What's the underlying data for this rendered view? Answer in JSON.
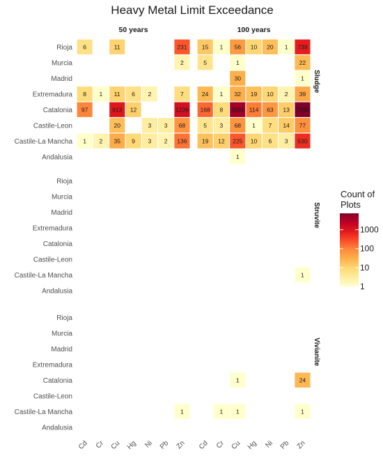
{
  "chart_data": {
    "type": "heatmap",
    "title": "Heavy Metal Limit Exceedance",
    "column_facets": [
      "50 years",
      "100 years"
    ],
    "row_facets": [
      "Sludge",
      "Struvite",
      "Vivianite"
    ],
    "metals": [
      "Cd",
      "Cr",
      "Cu",
      "Hg",
      "Ni",
      "Pb",
      "Zn"
    ],
    "regions": [
      "Rioja",
      "Murcia",
      "Madrid",
      "Extremadura",
      "Catalonia",
      "Castile-Leon",
      "Castile-La Mancha",
      "Andalusia"
    ],
    "legend": {
      "title": "Count of Plots",
      "scale": "log10",
      "breaks": [
        1,
        10,
        100,
        1000
      ],
      "break_labels": [
        "1",
        "10",
        "100",
        "1000"
      ],
      "colors": [
        "#ffffcc",
        "#ffeda0",
        "#fed976",
        "#feb24c",
        "#fd8d3c",
        "#fc4e2a",
        "#e31a1c",
        "#bd0026",
        "#800026"
      ],
      "max_value": 7398
    },
    "panels": [
      {
        "row_facet": "Sludge",
        "column_facet": "50 years",
        "cells": [
          {
            "region": "Rioja",
            "metal": "Cd",
            "value": 6
          },
          {
            "region": "Rioja",
            "metal": "Cu",
            "value": 11
          },
          {
            "region": "Rioja",
            "metal": "Zn",
            "value": 231
          },
          {
            "region": "Murcia",
            "metal": "Zn",
            "value": 2
          },
          {
            "region": "Extremadura",
            "metal": "Cd",
            "value": 8
          },
          {
            "region": "Extremadura",
            "metal": "Cr",
            "value": 1
          },
          {
            "region": "Extremadura",
            "metal": "Cu",
            "value": 11
          },
          {
            "region": "Extremadura",
            "metal": "Hg",
            "value": 6
          },
          {
            "region": "Extremadura",
            "metal": "Ni",
            "value": 2
          },
          {
            "region": "Extremadura",
            "metal": "Zn",
            "value": 7
          },
          {
            "region": "Catalonia",
            "metal": "Cd",
            "value": 97
          },
          {
            "region": "Catalonia",
            "metal": "Cu",
            "value": 913
          },
          {
            "region": "Catalonia",
            "metal": "Hg",
            "value": 12
          },
          {
            "region": "Catalonia",
            "metal": "Zn",
            "value": 1239
          },
          {
            "region": "Castile-Leon",
            "metal": "Cu",
            "value": 20
          },
          {
            "region": "Castile-Leon",
            "metal": "Ni",
            "value": 3
          },
          {
            "region": "Castile-Leon",
            "metal": "Pb",
            "value": 3
          },
          {
            "region": "Castile-Leon",
            "metal": "Zn",
            "value": 68
          },
          {
            "region": "Castile-La Mancha",
            "metal": "Cd",
            "value": 1
          },
          {
            "region": "Castile-La Mancha",
            "metal": "Cr",
            "value": 2
          },
          {
            "region": "Castile-La Mancha",
            "metal": "Cu",
            "value": 35
          },
          {
            "region": "Castile-La Mancha",
            "metal": "Hg",
            "value": 9
          },
          {
            "region": "Castile-La Mancha",
            "metal": "Ni",
            "value": 3
          },
          {
            "region": "Castile-La Mancha",
            "metal": "Pb",
            "value": 2
          },
          {
            "region": "Castile-La Mancha",
            "metal": "Zn",
            "value": 136
          }
        ]
      },
      {
        "row_facet": "Sludge",
        "column_facet": "100 years",
        "cells": [
          {
            "region": "Rioja",
            "metal": "Cd",
            "value": 15
          },
          {
            "region": "Rioja",
            "metal": "Cr",
            "value": 1
          },
          {
            "region": "Rioja",
            "metal": "Cu",
            "value": 56
          },
          {
            "region": "Rioja",
            "metal": "Hg",
            "value": 10
          },
          {
            "region": "Rioja",
            "metal": "Ni",
            "value": 20
          },
          {
            "region": "Rioja",
            "metal": "Pb",
            "value": 1
          },
          {
            "region": "Rioja",
            "metal": "Zn",
            "value": 739
          },
          {
            "region": "Murcia",
            "metal": "Cd",
            "value": 5
          },
          {
            "region": "Murcia",
            "metal": "Cu",
            "value": 1
          },
          {
            "region": "Murcia",
            "metal": "Zn",
            "value": 22
          },
          {
            "region": "Madrid",
            "metal": "Cu",
            "value": 30
          },
          {
            "region": "Madrid",
            "metal": "Zn",
            "value": 1
          },
          {
            "region": "Extremadura",
            "metal": "Cd",
            "value": 24
          },
          {
            "region": "Extremadura",
            "metal": "Cr",
            "value": 1
          },
          {
            "region": "Extremadura",
            "metal": "Cu",
            "value": 32
          },
          {
            "region": "Extremadura",
            "metal": "Hg",
            "value": 19
          },
          {
            "region": "Extremadura",
            "metal": "Ni",
            "value": 10
          },
          {
            "region": "Extremadura",
            "metal": "Pb",
            "value": 2
          },
          {
            "region": "Extremadura",
            "metal": "Zn",
            "value": 39
          },
          {
            "region": "Catalonia",
            "metal": "Cd",
            "value": 168
          },
          {
            "region": "Catalonia",
            "metal": "Cr",
            "value": 8
          },
          {
            "region": "Catalonia",
            "metal": "Cu",
            "value": 3835
          },
          {
            "region": "Catalonia",
            "metal": "Hg",
            "value": 114
          },
          {
            "region": "Catalonia",
            "metal": "Ni",
            "value": 63
          },
          {
            "region": "Catalonia",
            "metal": "Pb",
            "value": 13
          },
          {
            "region": "Catalonia",
            "metal": "Zn",
            "value": 7398
          },
          {
            "region": "Castile-Leon",
            "metal": "Cd",
            "value": 5
          },
          {
            "region": "Castile-Leon",
            "metal": "Cr",
            "value": 3
          },
          {
            "region": "Castile-Leon",
            "metal": "Cu",
            "value": 68
          },
          {
            "region": "Castile-Leon",
            "metal": "Hg",
            "value": 1
          },
          {
            "region": "Castile-Leon",
            "metal": "Ni",
            "value": 7
          },
          {
            "region": "Castile-Leon",
            "metal": "Pb",
            "value": 14
          },
          {
            "region": "Castile-Leon",
            "metal": "Zn",
            "value": 77
          },
          {
            "region": "Castile-La Mancha",
            "metal": "Cd",
            "value": 19
          },
          {
            "region": "Castile-La Mancha",
            "metal": "Cr",
            "value": 12
          },
          {
            "region": "Castile-La Mancha",
            "metal": "Cu",
            "value": 225
          },
          {
            "region": "Castile-La Mancha",
            "metal": "Hg",
            "value": 10
          },
          {
            "region": "Castile-La Mancha",
            "metal": "Ni",
            "value": 6
          },
          {
            "region": "Castile-La Mancha",
            "metal": "Pb",
            "value": 3
          },
          {
            "region": "Castile-La Mancha",
            "metal": "Zn",
            "value": 530
          },
          {
            "region": "Andalusia",
            "metal": "Cu",
            "value": 1
          }
        ]
      },
      {
        "row_facet": "Struvite",
        "column_facet": "50 years",
        "cells": []
      },
      {
        "row_facet": "Struvite",
        "column_facet": "100 years",
        "cells": [
          {
            "region": "Castile-La Mancha",
            "metal": "Zn",
            "value": 1
          }
        ]
      },
      {
        "row_facet": "Vivianite",
        "column_facet": "50 years",
        "cells": [
          {
            "region": "Castile-La Mancha",
            "metal": "Zn",
            "value": 1
          }
        ]
      },
      {
        "row_facet": "Vivianite",
        "column_facet": "100 years",
        "cells": [
          {
            "region": "Catalonia",
            "metal": "Cu",
            "value": 1
          },
          {
            "region": "Catalonia",
            "metal": "Zn",
            "value": 24
          },
          {
            "region": "Castile-La Mancha",
            "metal": "Cr",
            "value": 1
          },
          {
            "region": "Castile-La Mancha",
            "metal": "Cu",
            "value": 1
          },
          {
            "region": "Castile-La Mancha",
            "metal": "Zn",
            "value": 1
          }
        ]
      }
    ]
  }
}
